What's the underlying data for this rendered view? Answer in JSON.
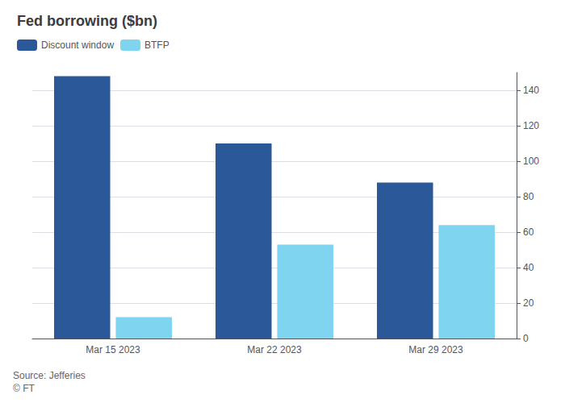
{
  "chart_data": {
    "type": "bar",
    "title": "Fed borrowing ($bn)",
    "annotations": [
      "Source: Jefferies\n© FT"
    ],
    "categories": [
      "Mar 15 2023",
      "Mar 22 2023",
      "Mar 29 2023"
    ],
    "series": [
      {
        "name": "Discount window",
        "values": [
          148,
          110,
          88
        ],
        "color": "#2b5899"
      },
      {
        "name": "BTFP",
        "values": [
          12,
          53,
          64
        ],
        "color": "#7fd4f0"
      }
    ],
    "ylim": [
      0,
      150
    ],
    "yticks": [
      0,
      20,
      40,
      60,
      80,
      100,
      120,
      140
    ],
    "grid": true,
    "legend": "upper left"
  }
}
